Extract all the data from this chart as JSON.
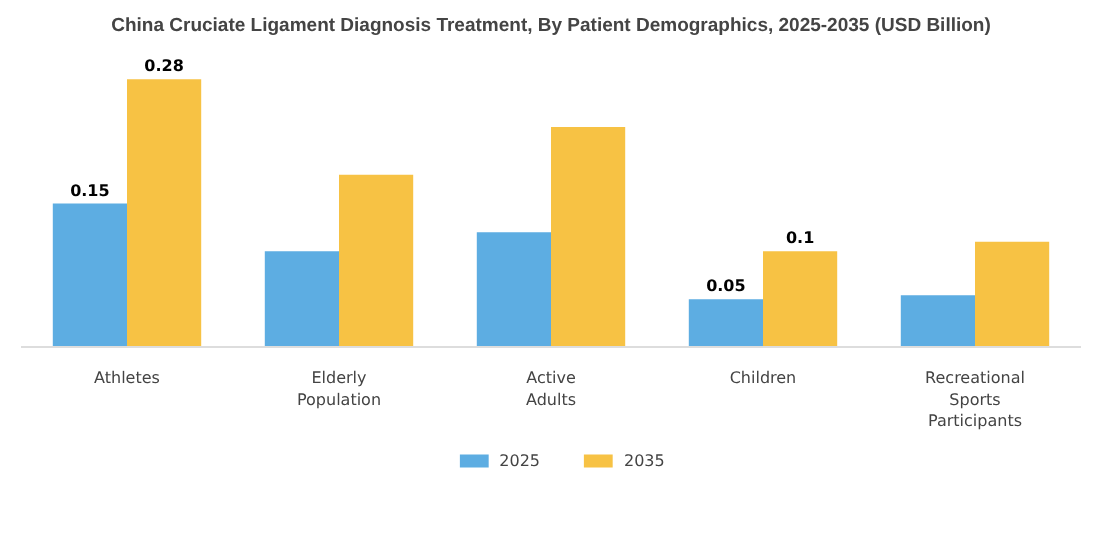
{
  "chart_data": {
    "type": "bar",
    "title": "China Cruciate Ligament Diagnosis Treatment, By Patient Demographics, 2025-2035 (USD Billion)",
    "categories": [
      "Athletes",
      "Elderly Population",
      "Active Adults",
      "Children",
      "Recreational Sports Participants"
    ],
    "series": [
      {
        "name": "2025",
        "color": "#5dade2",
        "values": [
          0.15,
          0.1,
          0.12,
          0.05,
          0.054
        ],
        "value_labels": [
          "0.15",
          null,
          null,
          "0.05",
          null
        ]
      },
      {
        "name": "2035",
        "color": "#f7c244",
        "values": [
          0.28,
          0.18,
          0.23,
          0.1,
          0.11
        ],
        "value_labels": [
          "0.28",
          null,
          null,
          "0.1",
          null
        ]
      }
    ],
    "legend": "bottom",
    "grid": false
  }
}
